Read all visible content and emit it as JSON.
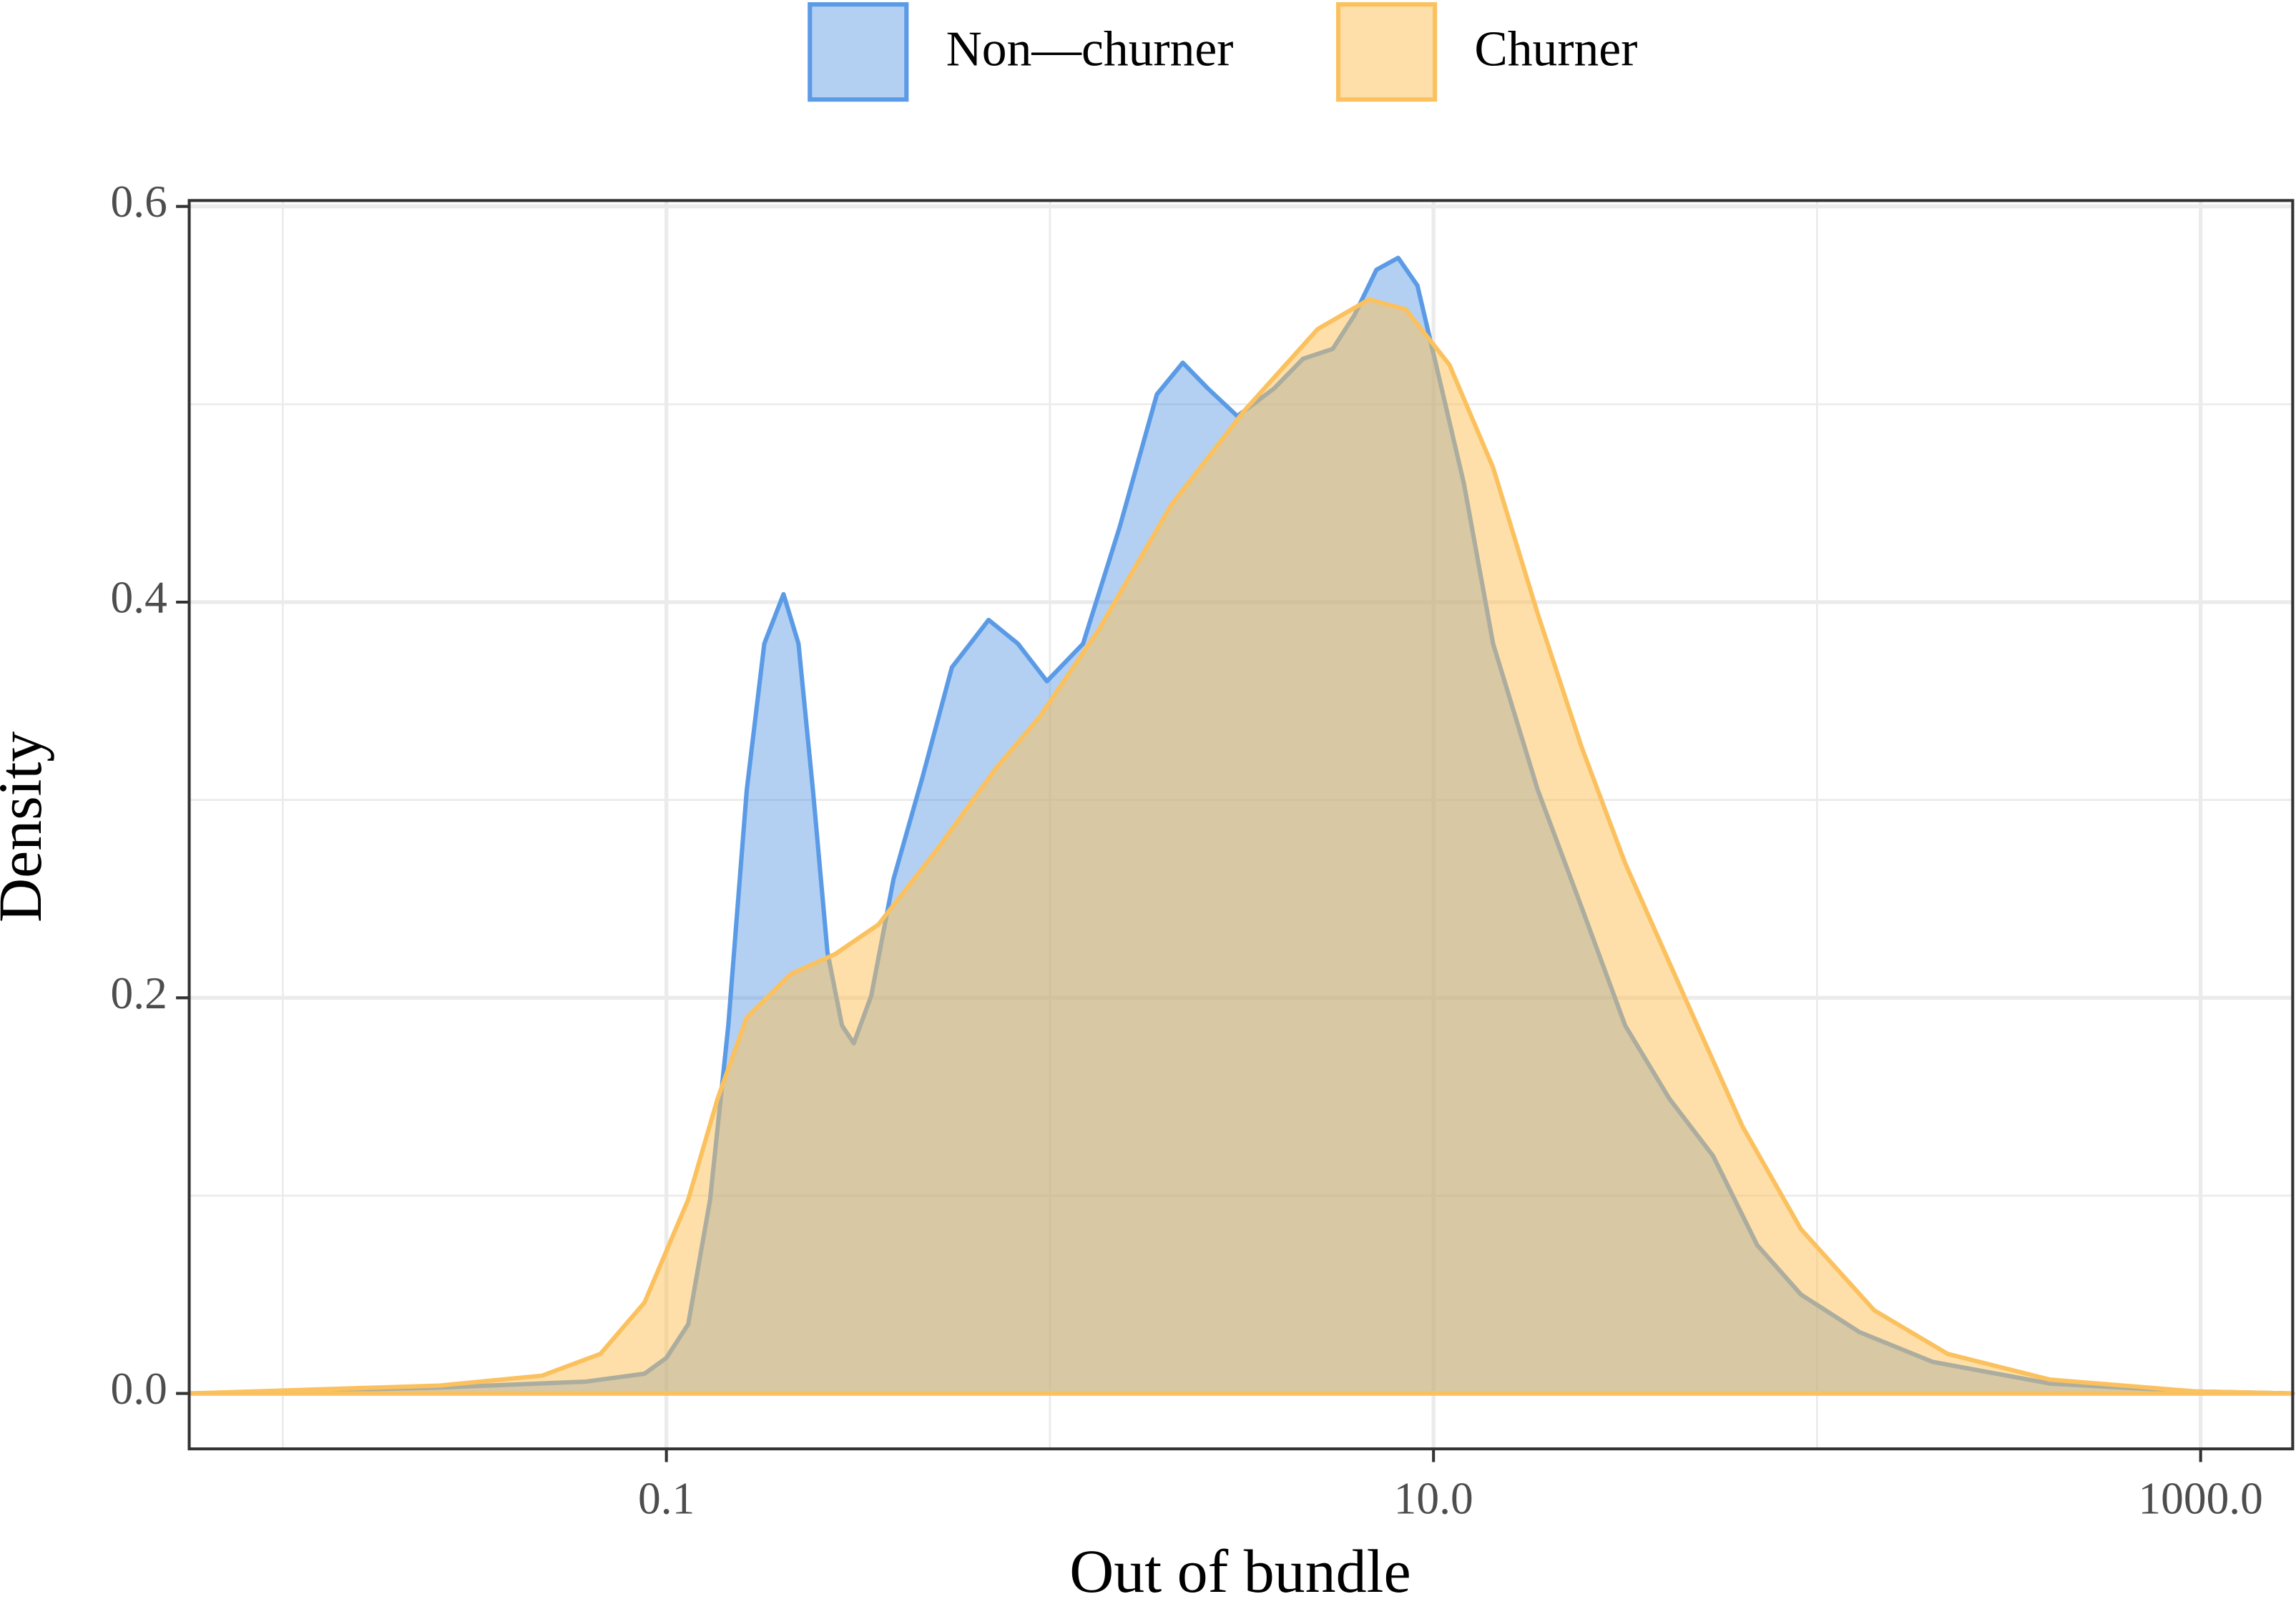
{
  "chart_data": {
    "type": "density",
    "x_label": "Out of bundle",
    "y_label": "Density",
    "xscale": "log",
    "grid": true,
    "legend_position": "top",
    "xlim": [
      0.0057,
      1738
    ],
    "xticks": [
      0.1,
      {
        "value": 10,
        "label": "10.0"
      },
      {
        "value": 1000,
        "label": "1000.0"
      }
    ],
    "x_minor_grid": [
      0.01,
      1,
      100
    ],
    "ylim": [
      -0.028,
      0.603
    ],
    "yticks": [
      {
        "value": 0,
        "label": "0.0"
      },
      0.2,
      0.4,
      0.6
    ],
    "y_minor_grid": [
      0.1,
      0.3,
      0.5
    ],
    "series": [
      {
        "name": "Non—churner",
        "color": "#5b9be6",
        "fill": "rgba(74,144,226,0.42)",
        "x": [
          0.0057,
          0.0256,
          0.0617,
          0.0877,
          0.1,
          0.114,
          0.13,
          0.145,
          0.162,
          0.18,
          0.202,
          0.221,
          0.241,
          0.263,
          0.287,
          0.308,
          0.342,
          0.391,
          0.466,
          0.555,
          0.692,
          0.825,
          0.982,
          1.22,
          1.52,
          1.9,
          2.22,
          2.58,
          3.08,
          3.84,
          4.57,
          5.46,
          6.22,
          7.1,
          8.09,
          9.08,
          10.5,
          12.0,
          14.3,
          18.7,
          24.3,
          31.6,
          41.2,
          53.6,
          69.8,
          90.8,
          129,
          200,
          405,
          975,
          1738
        ],
        "values": [
          0,
          0.003,
          0.006,
          0.01,
          0.018,
          0.035,
          0.098,
          0.186,
          0.305,
          0.379,
          0.404,
          0.379,
          0.305,
          0.223,
          0.186,
          0.177,
          0.201,
          0.26,
          0.312,
          0.367,
          0.391,
          0.379,
          0.36,
          0.379,
          0.438,
          0.505,
          0.521,
          0.508,
          0.494,
          0.508,
          0.523,
          0.528,
          0.545,
          0.568,
          0.574,
          0.56,
          0.508,
          0.46,
          0.379,
          0.305,
          0.246,
          0.186,
          0.149,
          0.12,
          0.075,
          0.05,
          0.031,
          0.016,
          0.005,
          0.001,
          0
        ]
      },
      {
        "name": "Churner",
        "color": "#fbc15e",
        "fill": "rgba(253,191,86,0.5)",
        "x": [
          0.0057,
          0.0256,
          0.0474,
          0.0673,
          0.0877,
          0.114,
          0.136,
          0.162,
          0.211,
          0.275,
          0.357,
          0.508,
          0.723,
          0.94,
          1.34,
          2.07,
          3.22,
          4.99,
          6.79,
          8.46,
          11.0,
          14.3,
          18.7,
          24.3,
          31.6,
          45.0,
          63.9,
          90.8,
          141,
          219,
          405,
          975,
          1738
        ],
        "values": [
          0,
          0.004,
          0.009,
          0.02,
          0.046,
          0.098,
          0.149,
          0.19,
          0.212,
          0.222,
          0.237,
          0.275,
          0.316,
          0.342,
          0.386,
          0.449,
          0.497,
          0.538,
          0.553,
          0.548,
          0.52,
          0.468,
          0.394,
          0.327,
          0.268,
          0.201,
          0.135,
          0.083,
          0.042,
          0.02,
          0.007,
          0.001,
          0
        ]
      }
    ]
  }
}
